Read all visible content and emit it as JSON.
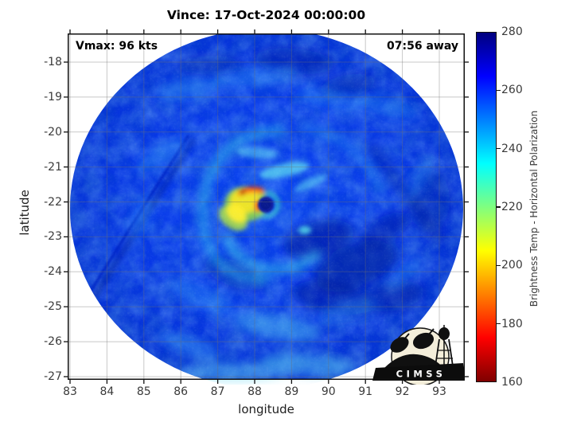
{
  "title": "Vince: 17-Oct-2024 00:00:00",
  "annotations": {
    "vmax": "Vmax: 96 kts",
    "time_away": "07:56 away"
  },
  "axes": {
    "x": {
      "label": "longitude",
      "ticks": [
        "83",
        "84",
        "85",
        "86",
        "87",
        "88",
        "89",
        "90",
        "91",
        "92",
        "93"
      ]
    },
    "y": {
      "label": "latitude",
      "ticks": [
        "-18",
        "-19",
        "-20",
        "-21",
        "-22",
        "-23",
        "-24",
        "-25",
        "-26",
        "-27"
      ]
    }
  },
  "colorbar": {
    "label": "Brightness Temp - Horizontal Polarization",
    "ticks": [
      "280",
      "260",
      "240",
      "220",
      "200",
      "180",
      "160"
    ],
    "gradient_stops": [
      "#00007f 0%",
      "#0000ff 12.5%",
      "#00ffff 37.5%",
      "#ffff00 62.5%",
      "#ff0000 87.5%",
      "#7f0000 100%"
    ]
  },
  "logo": {
    "label": "CIMSS"
  },
  "chart_data": {
    "type": "heatmap",
    "title": "Vince: 17-Oct-2024 00:00:00",
    "storm_name": "Vince",
    "datetime": "17-Oct-2024 00:00:00",
    "vmax_kts": 96,
    "time_offset_label": "07:56 away",
    "xlabel": "longitude",
    "ylabel": "latitude",
    "xlim": [
      82.9,
      93.7
    ],
    "ylim": [
      -27.1,
      -17.2
    ],
    "x_ticks": [
      83,
      84,
      85,
      86,
      87,
      88,
      89,
      90,
      91,
      92,
      93
    ],
    "y_ticks": [
      -18,
      -19,
      -20,
      -21,
      -22,
      -23,
      -24,
      -25,
      -26,
      -27
    ],
    "grid": true,
    "colorbar_label": "Brightness Temp - Horizontal Polarization",
    "colorbar_range_K": [
      160,
      280
    ],
    "colorbar_ticks_K": [
      160,
      180,
      200,
      220,
      240,
      260,
      280
    ],
    "colormap": "reversed jet (160 K = dark red, 205 K = yellow, 235 K = cyan, 265 K = blue, 280 K = dark navy)",
    "features": {
      "swath_shape": "circular microwave scan footprint centered on the storm, white outside swath",
      "swath_center": {
        "lon": 88.3,
        "lat": -22.2
      },
      "swath_radius_deg": 5.3,
      "eye": {
        "lon": 88.3,
        "lat": -22.2,
        "appearance": "small dark-navy warm spot ~272 K"
      },
      "eyewall": "yellow/orange/red cold-convection arc (~170-215 K) wrapping W and NW of the eye",
      "environment": "mostly blue ~250-260 K with cyan spiral rainbands and darker navy ~265-275 K patches SE of center",
      "logo": "CIMSS logo badge at bottom-right inside plot"
    }
  }
}
